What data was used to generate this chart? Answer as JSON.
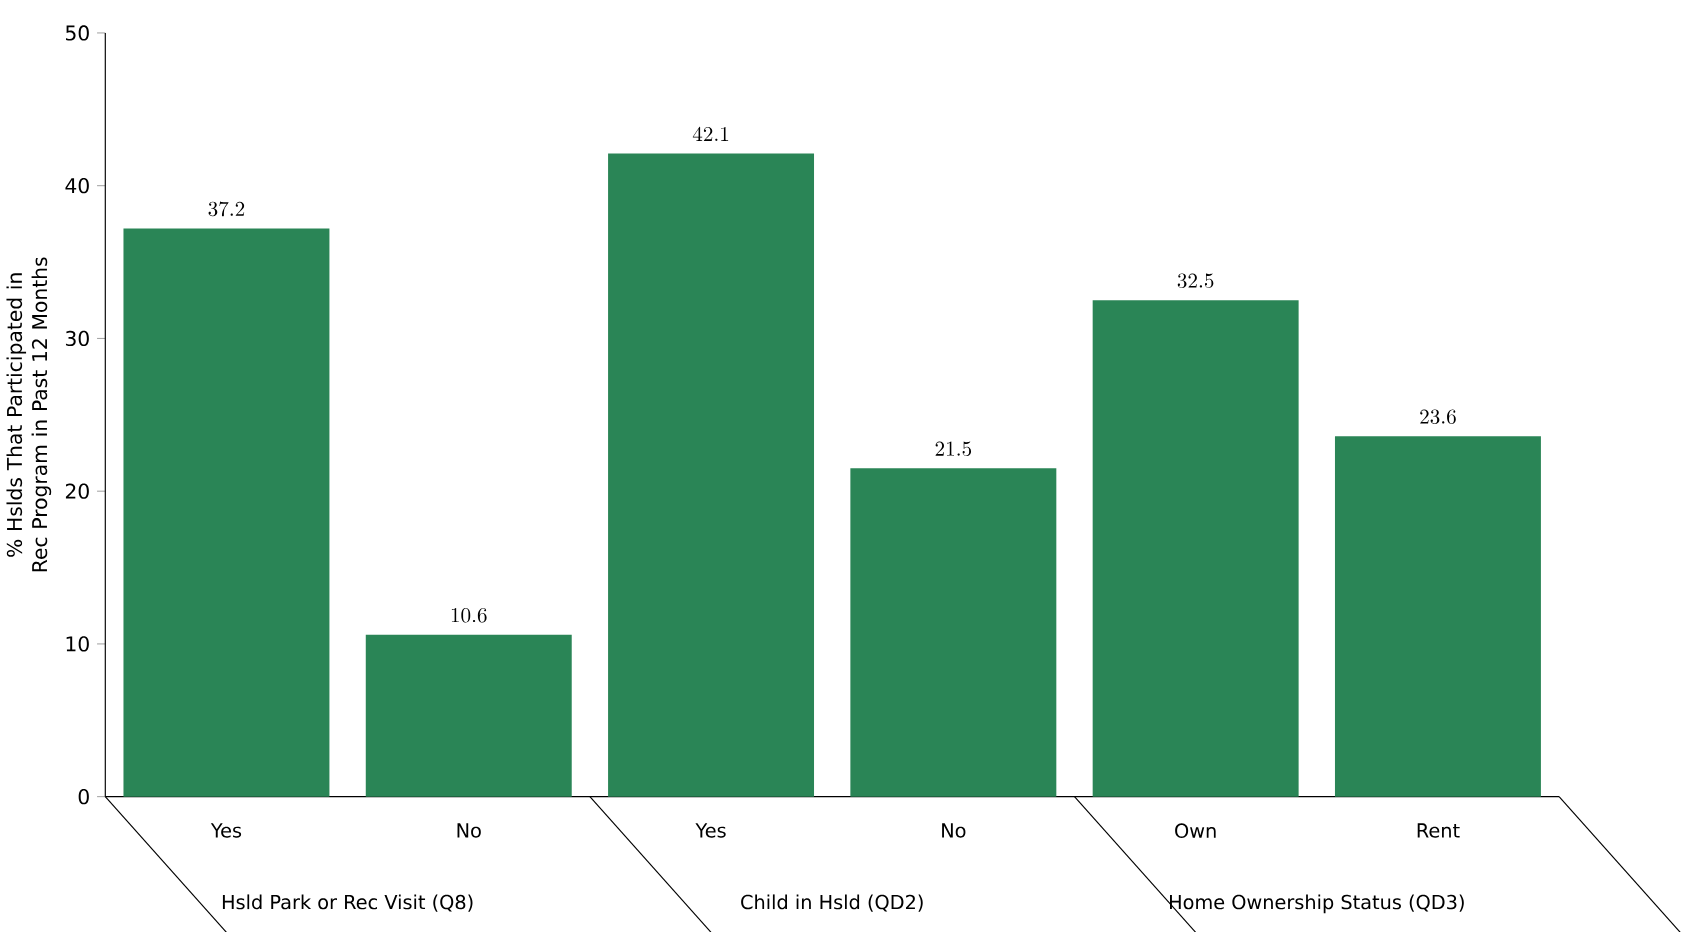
{
  "chart_data": {
    "type": "bar",
    "ylabel": "% Hslds That Participated in Rec Program in Past 12 Months",
    "categories": [
      "Yes",
      "No",
      "Yes",
      "No",
      "Own",
      "Rent"
    ],
    "values": [
      37.2,
      10.6,
      42.1,
      21.5,
      32.5,
      23.6
    ],
    "color": "#2a8556",
    "ylim": [
      0,
      50
    ],
    "yticks": [
      0,
      10,
      20,
      30,
      40,
      50
    ],
    "data_labels": true,
    "annotations": [
      "Hsld Park or Rec Visit (Q8)",
      "Child in Hsld (QD2)",
      "Home Ownership Status (QD3)"
    ]
  }
}
